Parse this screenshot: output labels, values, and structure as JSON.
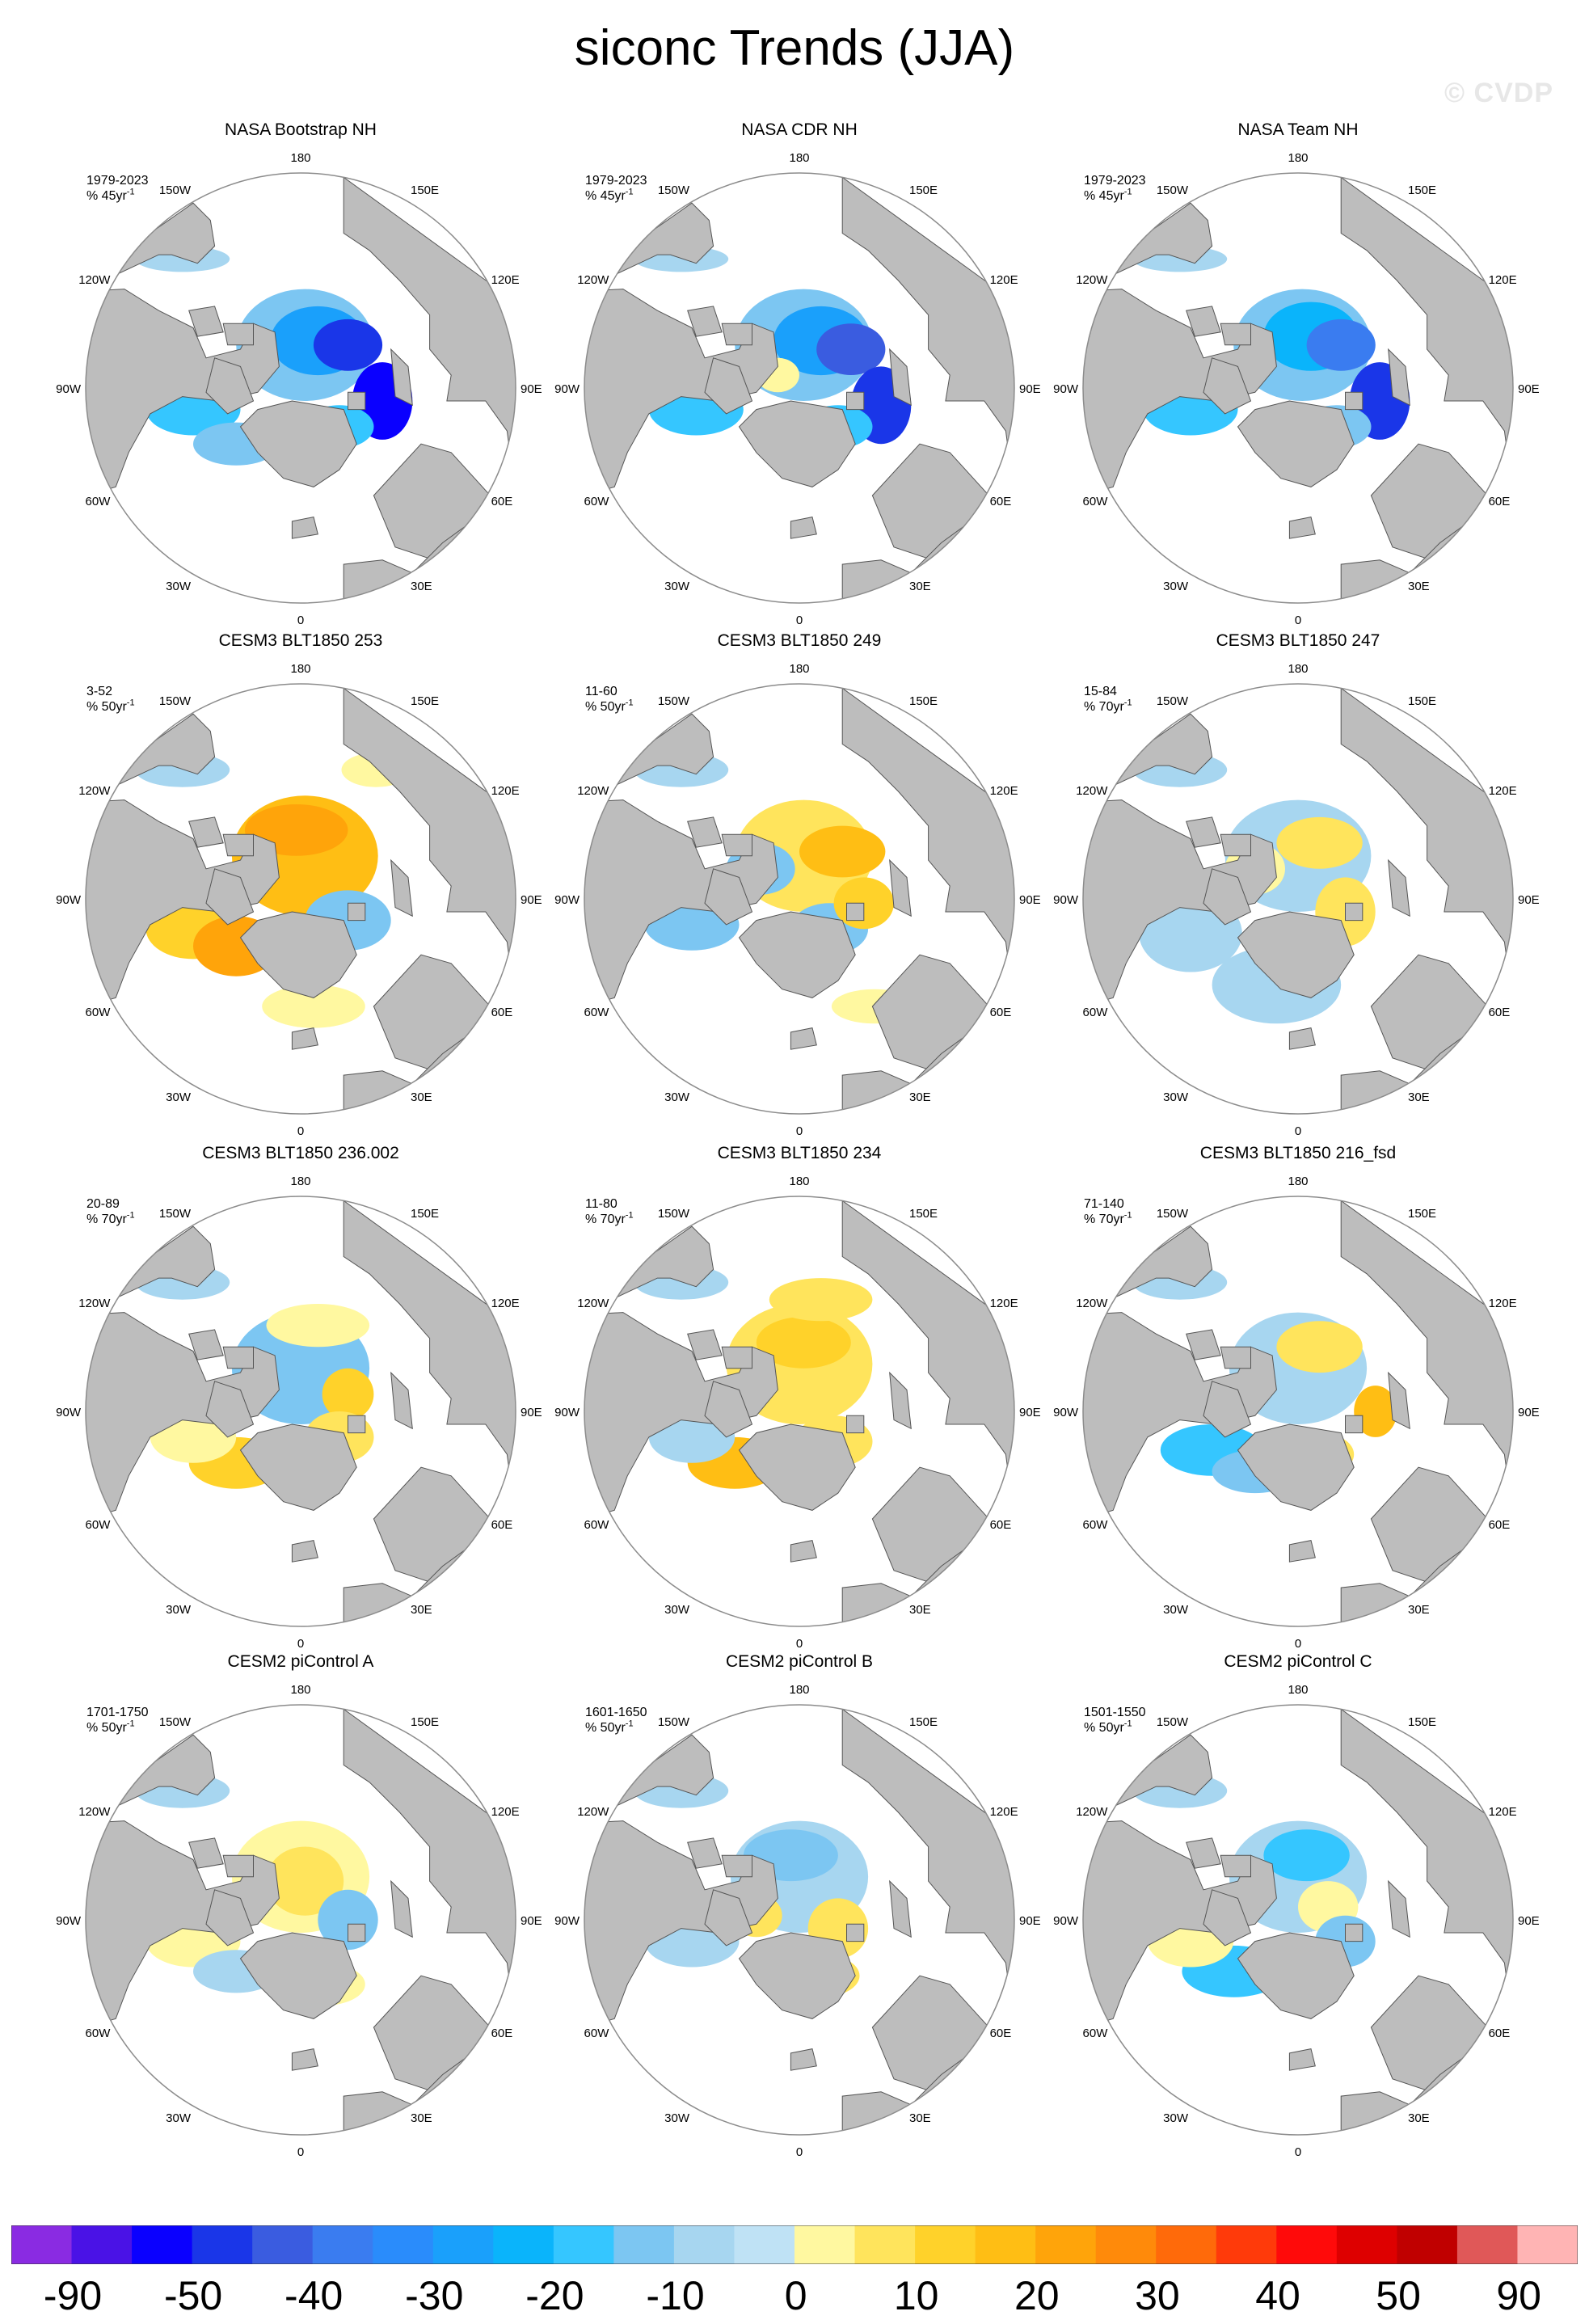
{
  "title": "siconc Trends (JJA)",
  "watermark": "© CVDP",
  "colors": {
    "land": "#bdbdbd",
    "ocean": "#ffffff",
    "frame": "#8c8c8c"
  },
  "longitude_labels": {
    "top": "180",
    "bottom": "0",
    "upper_left": "150W",
    "upper_right": "150E",
    "left_upper": "120W",
    "right_upper": "120E",
    "left": "90W",
    "right": "90E",
    "left_lower": "60W",
    "right_lower": "60E",
    "lower_left": "30W",
    "lower_right": "30E"
  },
  "panels": [
    {
      "title": "NASA Bootstrap NH",
      "years": "1979-2023",
      "unit": "% 45yr",
      "exp": "-1",
      "pattern": "obs_bootstrap"
    },
    {
      "title": "NASA CDR NH",
      "years": "1979-2023",
      "unit": "% 45yr",
      "exp": "-1",
      "pattern": "obs_cdr"
    },
    {
      "title": "NASA Team NH",
      "years": "1979-2023",
      "unit": "% 45yr",
      "exp": "-1",
      "pattern": "obs_team"
    },
    {
      "title": "CESM3 BLT1850 253",
      "years": "3-52",
      "unit": "% 50yr",
      "exp": "-1",
      "pattern": "pos_strong"
    },
    {
      "title": "CESM3 BLT1850 249",
      "years": "11-60",
      "unit": "% 50yr",
      "exp": "-1",
      "pattern": "mixed_warm"
    },
    {
      "title": "CESM3 BLT1850 247",
      "years": "15-84",
      "unit": "% 70yr",
      "exp": "-1",
      "pattern": "mixed_cool"
    },
    {
      "title": "CESM3 BLT1850 236.002",
      "years": "20-89",
      "unit": "% 70yr",
      "exp": "-1",
      "pattern": "mixed_a"
    },
    {
      "title": "CESM3 BLT1850 234",
      "years": "11-80",
      "unit": "% 70yr",
      "exp": "-1",
      "pattern": "pos_mod"
    },
    {
      "title": "CESM3 BLT1850 216_fsd",
      "years": "71-140",
      "unit": "% 70yr",
      "exp": "-1",
      "pattern": "mixed_b"
    },
    {
      "title": "CESM2 piControl A",
      "years": "1701-1750",
      "unit": "% 50yr",
      "exp": "-1",
      "pattern": "pos_weak"
    },
    {
      "title": "CESM2 piControl B",
      "years": "1601-1650",
      "unit": "% 50yr",
      "exp": "-1",
      "pattern": "mixed_c"
    },
    {
      "title": "CESM2 piControl C",
      "years": "1501-1550",
      "unit": "% 50yr",
      "exp": "-1",
      "pattern": "mixed_d"
    }
  ],
  "colorbar": {
    "colors": [
      "#8a2be2",
      "#4a12e6",
      "#0a00ff",
      "#1a36e8",
      "#3a5ce0",
      "#3a7cf0",
      "#2a8cfb",
      "#1aa0fb",
      "#0ab4fb",
      "#35c6ff",
      "#7cc6f2",
      "#a7d6f0",
      "#bfe2f5",
      "#fff8a0",
      "#ffe45c",
      "#ffd22a",
      "#ffbe14",
      "#ffa40a",
      "#ff8a0a",
      "#ff6a0a",
      "#ff3a0a",
      "#ff0a0a",
      "#de0000",
      "#c00000",
      "#e05858",
      "#ffb4b4"
    ],
    "labels": [
      "-90",
      "-50",
      "-40",
      "-30",
      "-20",
      "-10",
      "0",
      "10",
      "20",
      "30",
      "40",
      "50",
      "90"
    ]
  }
}
